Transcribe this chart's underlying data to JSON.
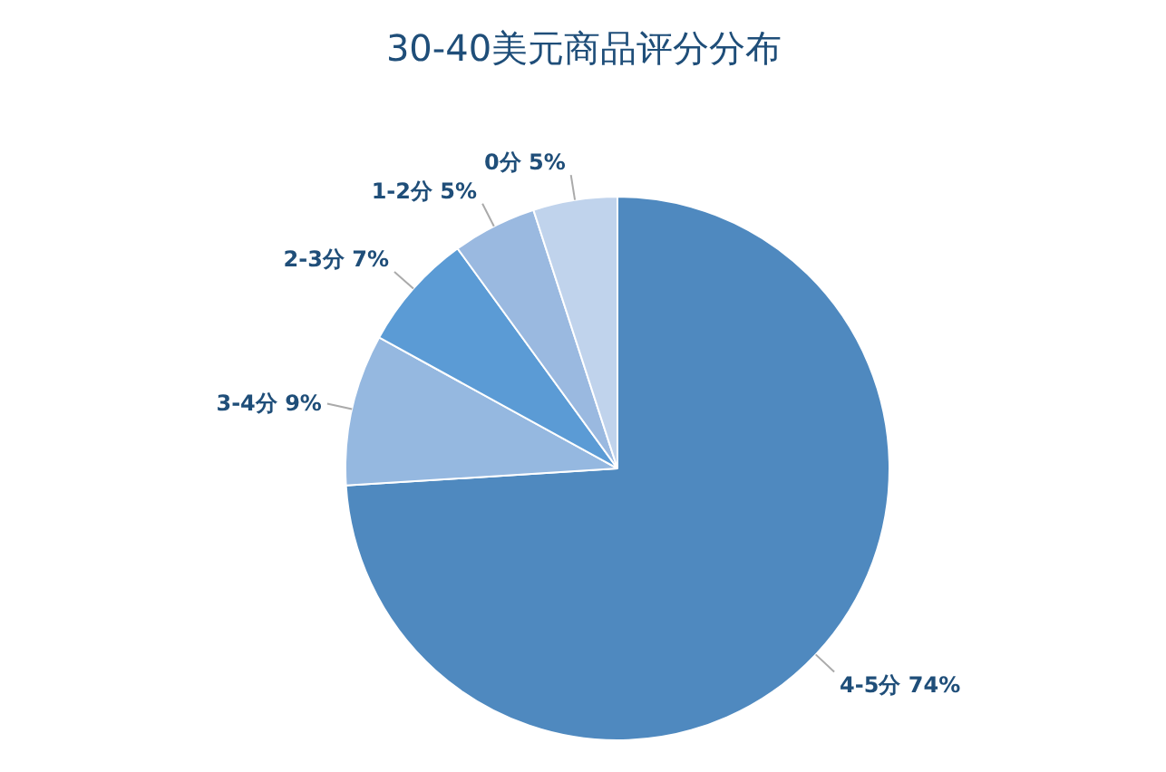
{
  "chart_data": {
    "type": "pie",
    "title": "30-40美元商品评分分布",
    "categories": [
      "4-5分",
      "3-4分",
      "2-3分",
      "1-2分",
      "0分"
    ],
    "values": [
      74,
      9,
      7,
      5,
      5
    ],
    "value_labels": [
      "74%",
      "9%",
      "7%",
      "5%",
      "5%"
    ],
    "colors": [
      "#4f89bf",
      "#95b8e0",
      "#5b9bd5",
      "#9ab9e0",
      "#c0d3ec"
    ]
  }
}
